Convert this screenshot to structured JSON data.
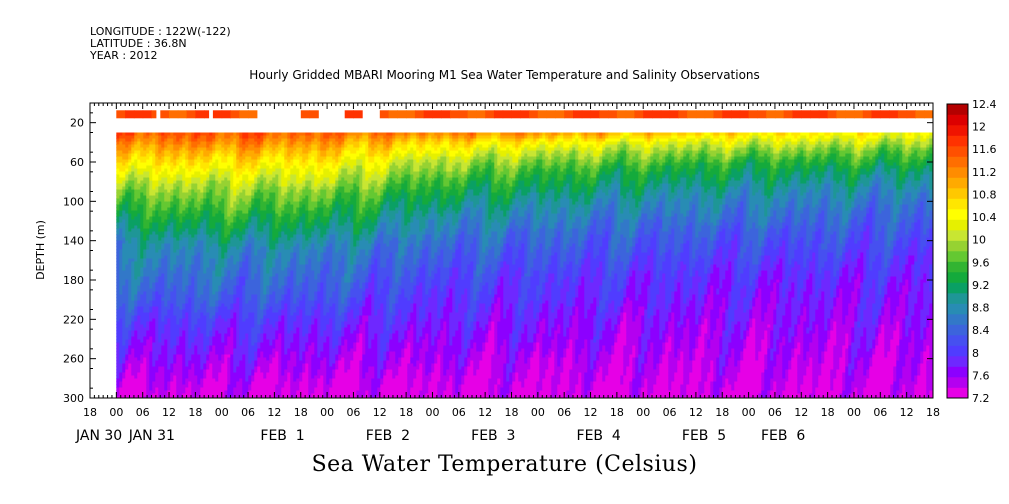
{
  "header": {
    "longitude": "LONGITUDE : 122W(-122)",
    "latitude": "LATITUDE : 36.8N",
    "year": "YEAR : 2012"
  },
  "chart_data": {
    "type": "heatmap",
    "title": "Hourly Gridded MBARI Mooring M1 Sea Water Temperature and Salinity Observations",
    "caption": "Sea Water Temperature (Celsius)",
    "ylabel": "DEPTH (m)",
    "ylim": [
      0,
      300
    ],
    "y_reversed": true,
    "y_ticks": [
      20,
      60,
      100,
      140,
      180,
      220,
      260,
      300
    ],
    "x_range_hours": [
      -6,
      186
    ],
    "x_ticks": [
      {
        "hour": -6,
        "label": "18"
      },
      {
        "hour": 0,
        "label": "00"
      },
      {
        "hour": 6,
        "label": "06"
      },
      {
        "hour": 12,
        "label": "12"
      },
      {
        "hour": 18,
        "label": "18"
      },
      {
        "hour": 24,
        "label": "00"
      },
      {
        "hour": 30,
        "label": "06"
      },
      {
        "hour": 36,
        "label": "12"
      },
      {
        "hour": 42,
        "label": "18"
      },
      {
        "hour": 48,
        "label": "00"
      },
      {
        "hour": 54,
        "label": "06"
      },
      {
        "hour": 60,
        "label": "12"
      },
      {
        "hour": 66,
        "label": "18"
      },
      {
        "hour": 72,
        "label": "00"
      },
      {
        "hour": 78,
        "label": "06"
      },
      {
        "hour": 84,
        "label": "12"
      },
      {
        "hour": 90,
        "label": "18"
      },
      {
        "hour": 96,
        "label": "00"
      },
      {
        "hour": 102,
        "label": "06"
      },
      {
        "hour": 108,
        "label": "12"
      },
      {
        "hour": 114,
        "label": "18"
      },
      {
        "hour": 120,
        "label": "00"
      },
      {
        "hour": 126,
        "label": "06"
      },
      {
        "hour": 132,
        "label": "12"
      },
      {
        "hour": 138,
        "label": "18"
      },
      {
        "hour": 144,
        "label": "00"
      },
      {
        "hour": 150,
        "label": "06"
      },
      {
        "hour": 156,
        "label": "12"
      },
      {
        "hour": 162,
        "label": "18"
      },
      {
        "hour": 168,
        "label": "00"
      },
      {
        "hour": 174,
        "label": "06"
      },
      {
        "hour": 180,
        "label": "12"
      },
      {
        "hour": 186,
        "label": "18"
      }
    ],
    "day_labels": [
      {
        "hour": -6,
        "label": "JAN 30"
      },
      {
        "hour": 6,
        "label": "JAN 31"
      },
      {
        "hour": 36,
        "label": "FEB  1"
      },
      {
        "hour": 60,
        "label": "FEB  2"
      },
      {
        "hour": 84,
        "label": "FEB  3"
      },
      {
        "hour": 108,
        "label": "FEB  4"
      },
      {
        "hour": 132,
        "label": "FEB  5"
      },
      {
        "hour": 150,
        "label": "FEB  6"
      }
    ],
    "data_start_hour": 0,
    "data_end_hour": 186,
    "surface_depth_m": 10,
    "surface_gaps_hours": [
      [
        9,
        10
      ],
      [
        21,
        22
      ],
      [
        32,
        42
      ],
      [
        46,
        52
      ],
      [
        56,
        60
      ]
    ],
    "profile_top_m": 30,
    "profile_bottom_m": 300,
    "color_scale": {
      "min": 7.2,
      "max": 12.4,
      "step": 0.2,
      "labels": [
        "12.4",
        "12",
        "11.6",
        "11.2",
        "10.8",
        "10.4",
        "10",
        "9.6",
        "9.2",
        "8.8",
        "8.4",
        "8",
        "7.6",
        "7.2"
      ],
      "colors": [
        "#e600e6",
        "#b400f0",
        "#8c00ff",
        "#6e28ff",
        "#503cff",
        "#4650f0",
        "#3c64dc",
        "#3278c8",
        "#288cb4",
        "#1e9696",
        "#0aa064",
        "#14aa3c",
        "#32b432",
        "#64c832",
        "#96d232",
        "#c8e632",
        "#e6f000",
        "#ffff00",
        "#ffe600",
        "#ffc800",
        "#ffaa00",
        "#ff8c00",
        "#ff6e00",
        "#ff5000",
        "#ff3200",
        "#f01400",
        "#dc0000",
        "#b40000"
      ]
    },
    "profiles": {
      "depths_m": [
        30,
        40,
        50,
        60,
        70,
        80,
        90,
        100,
        110,
        120,
        130,
        140,
        150,
        160,
        180,
        200,
        220,
        240,
        260,
        280,
        300
      ],
      "hours": [
        0,
        24,
        48,
        72,
        96,
        120,
        144,
        168,
        186
      ],
      "temperature_c": [
        [
          11.9,
          11.5,
          11.2,
          10.9,
          10.6,
          10.3,
          10.0,
          9.8,
          9.6,
          9.4,
          9.2,
          9.0,
          8.9,
          8.8,
          8.6,
          8.4,
          8.1,
          7.9,
          7.7,
          7.5,
          7.3
        ],
        [
          11.9,
          11.6,
          11.2,
          10.9,
          10.6,
          10.3,
          10.1,
          9.9,
          9.7,
          9.5,
          9.3,
          9.1,
          8.9,
          8.8,
          8.6,
          8.4,
          8.1,
          7.9,
          7.7,
          7.5,
          7.3
        ],
        [
          11.8,
          11.4,
          11.1,
          10.8,
          10.5,
          10.3,
          10.0,
          9.8,
          9.6,
          9.4,
          9.2,
          9.0,
          8.8,
          8.7,
          8.5,
          8.3,
          8.0,
          7.8,
          7.6,
          7.4,
          7.2
        ],
        [
          11.6,
          11.0,
          10.6,
          10.2,
          10.0,
          9.7,
          9.5,
          9.3,
          9.1,
          8.9,
          8.8,
          8.6,
          8.5,
          8.4,
          8.2,
          8.0,
          7.9,
          7.7,
          7.6,
          7.4,
          7.3
        ],
        [
          11.5,
          10.8,
          10.3,
          10.0,
          9.7,
          9.5,
          9.3,
          9.1,
          8.9,
          8.8,
          8.6,
          8.5,
          8.4,
          8.3,
          8.1,
          8.0,
          7.8,
          7.7,
          7.5,
          7.4,
          7.3
        ],
        [
          11.2,
          10.5,
          10.1,
          9.8,
          9.5,
          9.3,
          9.1,
          8.9,
          8.8,
          8.6,
          8.5,
          8.4,
          8.3,
          8.2,
          8.0,
          7.9,
          7.7,
          7.6,
          7.5,
          7.4,
          7.3
        ],
        [
          11.0,
          10.4,
          10.0,
          9.6,
          9.4,
          9.2,
          9.0,
          8.8,
          8.7,
          8.6,
          8.4,
          8.3,
          8.2,
          8.1,
          7.9,
          7.8,
          7.7,
          7.6,
          7.5,
          7.4,
          7.3
        ],
        [
          10.8,
          10.3,
          9.9,
          9.6,
          9.3,
          9.1,
          8.9,
          8.8,
          8.6,
          8.5,
          8.4,
          8.3,
          8.2,
          8.1,
          7.9,
          7.8,
          7.7,
          7.6,
          7.5,
          7.4,
          7.3
        ],
        [
          10.6,
          10.2,
          9.8,
          9.5,
          9.2,
          9.0,
          8.8,
          8.6,
          8.5,
          8.4,
          8.3,
          8.2,
          8.1,
          8.0,
          7.9,
          7.8,
          7.7,
          7.6,
          7.5,
          7.4,
          7.3
        ]
      ]
    }
  }
}
